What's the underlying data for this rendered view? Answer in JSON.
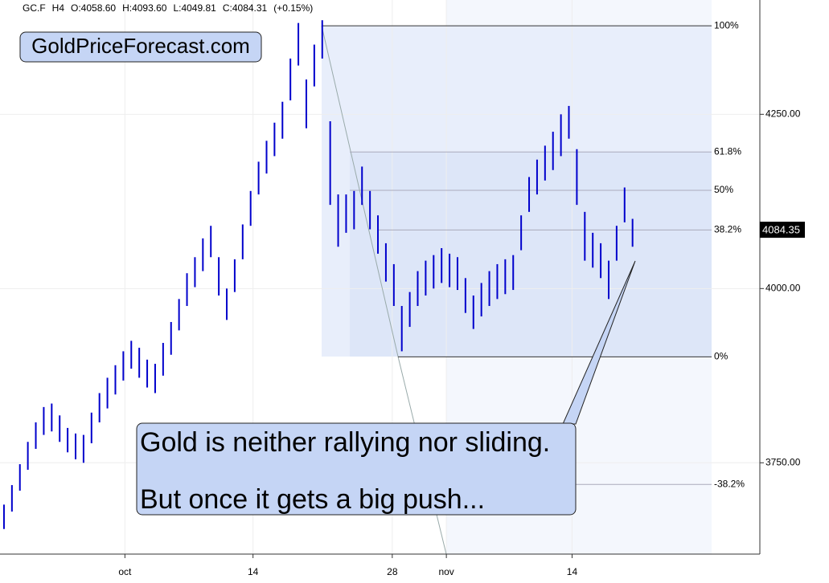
{
  "header": {
    "symbol": "GC.F",
    "interval": "H4",
    "open": "O:4058.60",
    "high": "H:4093.60",
    "low": "L:4049.81",
    "close": "C:4084.31",
    "change": "(+0.15%)"
  },
  "watermark_label": "GoldPriceForecast.com",
  "annotation": {
    "line1": "Gold is neither rallying nor sliding.",
    "line2": "But once it gets a big push..."
  },
  "chart_data": {
    "type": "ohlc",
    "color": "#0000cc",
    "high": [
      3690,
      3718,
      3748,
      3780,
      3808,
      3830,
      3835,
      3818,
      3800,
      3792,
      3790,
      3822,
      3850,
      3872,
      3890,
      3910,
      3925,
      3915,
      3898,
      3892,
      3922,
      3952,
      3985,
      4022,
      4045,
      4072,
      4090,
      4045,
      4000,
      4042,
      4092,
      4140,
      4182,
      4212,
      4238,
      4268,
      4330,
      4381,
      4300,
      4350,
      4385,
      4240,
      4135,
      4135,
      4140,
      4175,
      4140,
      4105,
      4065,
      4035,
      3975,
      3995,
      4025,
      4040,
      4048,
      4058,
      4050,
      4045,
      4015,
      3990,
      4008,
      4025,
      4035,
      4042,
      4048,
      4105,
      4160,
      4185,
      4205,
      4225,
      4250,
      4262,
      4200,
      4110,
      4080,
      4065,
      4040,
      4090,
      4145,
      4100
    ],
    "low": [
      3655,
      3680,
      3710,
      3740,
      3770,
      3790,
      3795,
      3780,
      3765,
      3755,
      3750,
      3778,
      3808,
      3828,
      3848,
      3868,
      3885,
      3872,
      3858,
      3850,
      3875,
      3905,
      3940,
      3975,
      4002,
      4025,
      4045,
      3990,
      3955,
      3995,
      4042,
      4090,
      4135,
      4165,
      4190,
      4215,
      4270,
      4320,
      4230,
      4290,
      4330,
      4120,
      4060,
      4080,
      4085,
      4120,
      4085,
      4050,
      4010,
      3975,
      3910,
      3945,
      3975,
      3990,
      4000,
      4008,
      4002,
      3998,
      3965,
      3942,
      3960,
      3975,
      3985,
      3992,
      3998,
      4055,
      4110,
      4135,
      4155,
      4170,
      4190,
      4215,
      4120,
      4040,
      4030,
      4015,
      3985,
      4040,
      4095,
      4060
    ],
    "xlim": [
      -0.5,
      95
    ],
    "xticks": [
      {
        "value": 15.2,
        "label": "oct"
      },
      {
        "value": 31.3,
        "label": "14"
      },
      {
        "value": 48.8,
        "label": "28"
      },
      {
        "value": 55.6,
        "label": "nov"
      },
      {
        "value": 71.4,
        "label": "14"
      }
    ],
    "ylim": [
      3619,
      4414
    ],
    "yticks": [
      {
        "value": 3750,
        "label": "3750.00"
      },
      {
        "value": 4000,
        "label": "4000.00"
      },
      {
        "value": 4250,
        "label": "4250.00"
      }
    ],
    "fib": {
      "values": [
        4377,
        4196,
        4141,
        4084,
        3902,
        3719
      ],
      "labels": [
        "100%",
        "61.8%",
        "50%",
        "38.2%",
        "0%",
        "-38.2%"
      ]
    },
    "last_price": 4084.35,
    "grid": true
  }
}
